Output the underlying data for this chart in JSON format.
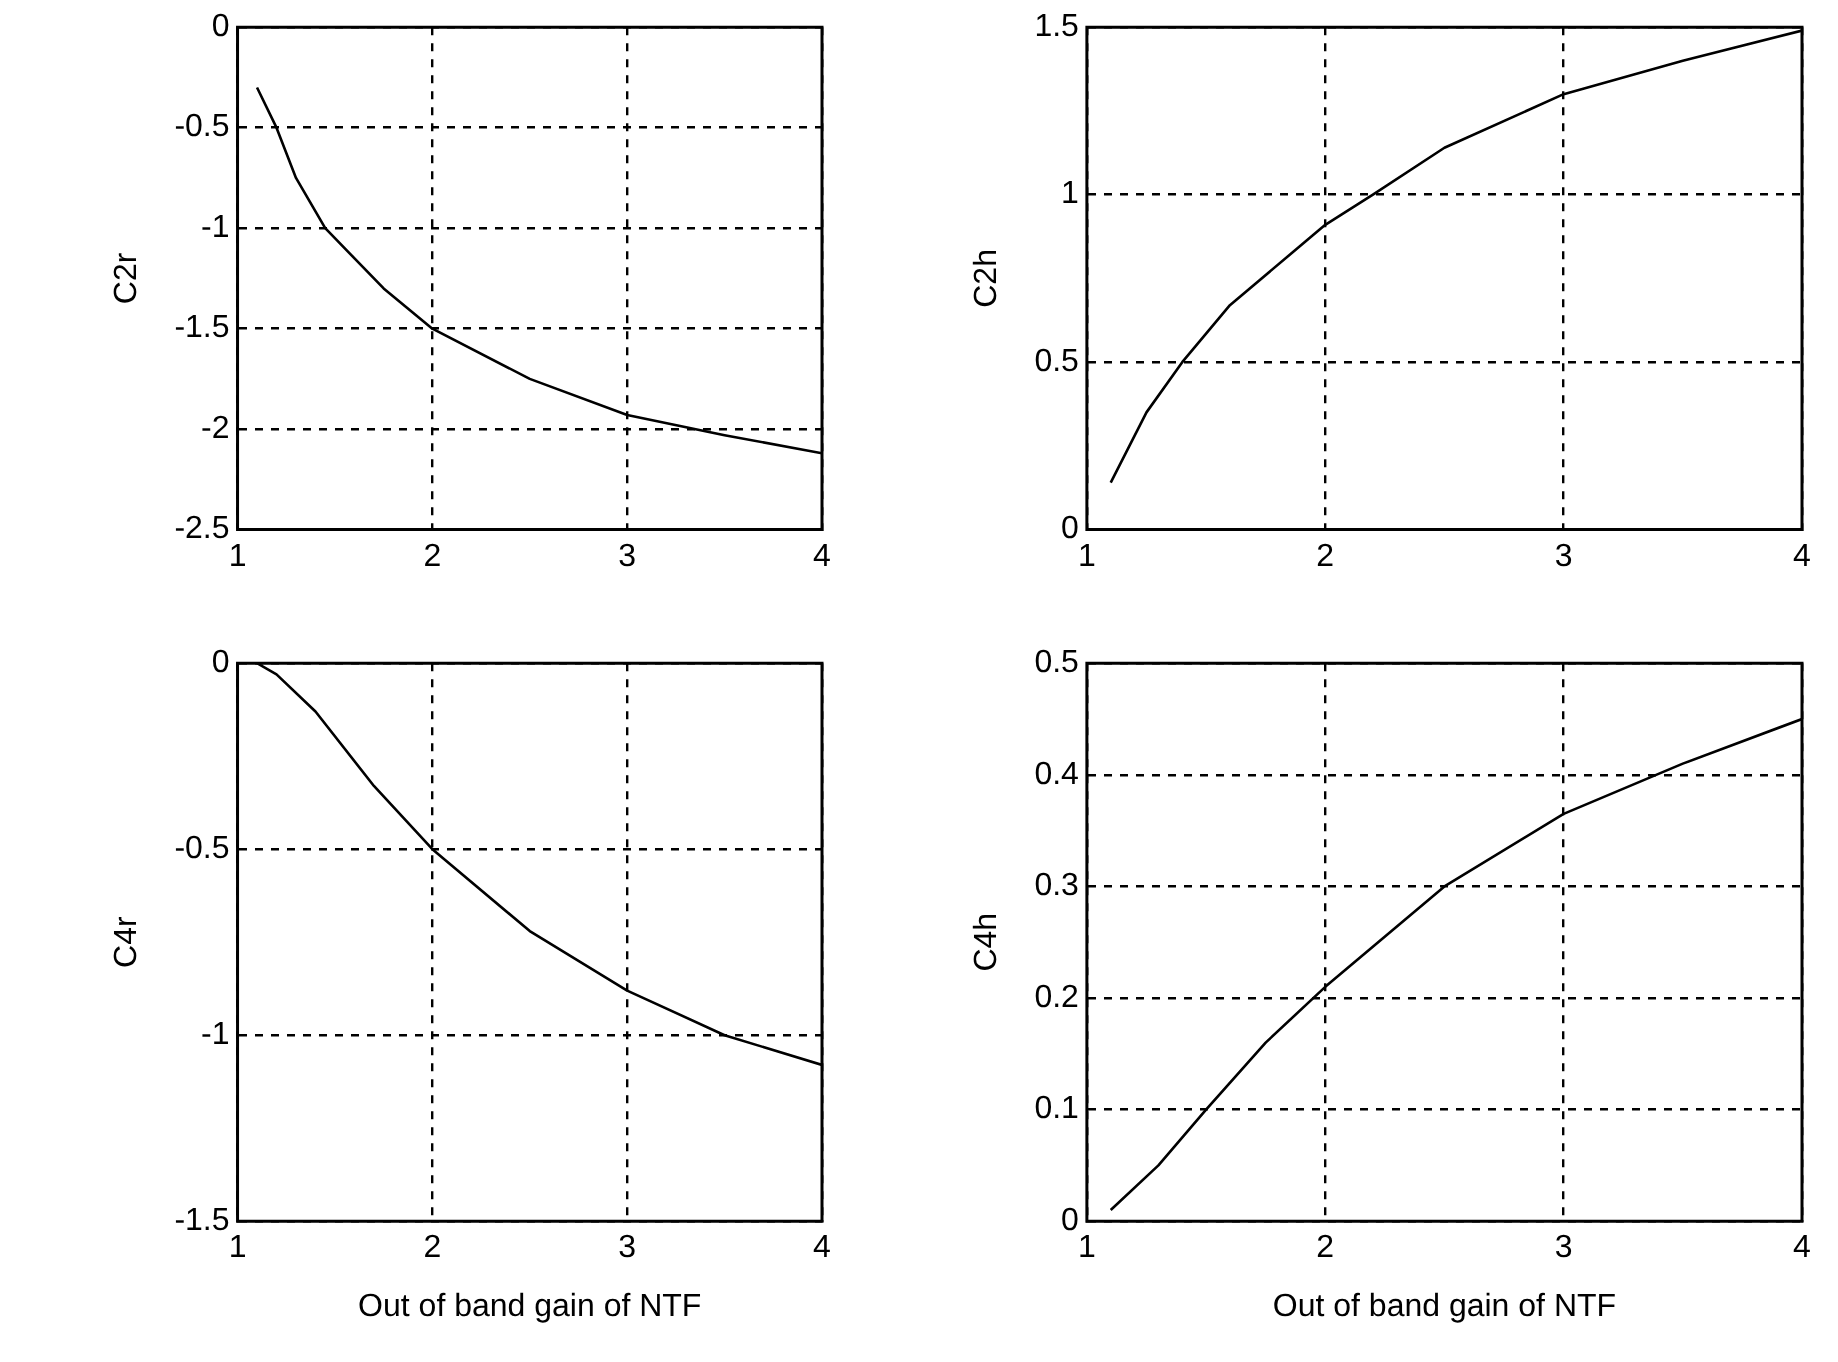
{
  "chart_data": [
    {
      "type": "line",
      "ylabel": "C2r",
      "xlim": [
        1,
        4
      ],
      "xticks": [
        1,
        2,
        3,
        4
      ],
      "ylim": [
        -2.5,
        0
      ],
      "yticks": [
        -2.5,
        -2,
        -1.5,
        -1,
        -0.5,
        0
      ],
      "grid": true,
      "series": [
        {
          "color": "#000000",
          "x": [
            1.1,
            1.2,
            1.3,
            1.45,
            1.75,
            2,
            2.5,
            3,
            3.5,
            4
          ],
          "values": [
            -0.3,
            -0.5,
            -0.75,
            -1,
            -1.3,
            -1.5,
            -1.75,
            -1.93,
            -2.03,
            -2.12
          ]
        }
      ]
    },
    {
      "type": "line",
      "ylabel": "C2h",
      "xlim": [
        1,
        4
      ],
      "xticks": [
        1,
        2,
        3,
        4
      ],
      "ylim": [
        0,
        1.5
      ],
      "yticks": [
        0,
        0.5,
        1,
        1.5
      ],
      "grid": true,
      "series": [
        {
          "color": "#000000",
          "x": [
            1.1,
            1.25,
            1.4,
            1.6,
            2,
            2.2,
            2.5,
            3,
            3.5,
            4
          ],
          "values": [
            0.14,
            0.35,
            0.5,
            0.67,
            0.91,
            1,
            1.14,
            1.3,
            1.4,
            1.49
          ]
        }
      ]
    },
    {
      "type": "line",
      "ylabel": "C4r",
      "xlabel": "Out of band gain of NTF",
      "xlim": [
        1,
        4
      ],
      "xticks": [
        1,
        2,
        3,
        4
      ],
      "ylim": [
        -1.5,
        0
      ],
      "yticks": [
        -1.5,
        -1,
        -0.5,
        0
      ],
      "grid": true,
      "series": [
        {
          "color": "#000000",
          "x": [
            1.1,
            1.2,
            1.4,
            1.7,
            2,
            2.5,
            3,
            3.5,
            4
          ],
          "values": [
            0,
            -0.03,
            -0.13,
            -0.33,
            -0.5,
            -0.72,
            -0.88,
            -1,
            -1.08
          ]
        }
      ]
    },
    {
      "type": "line",
      "ylabel": "C4h",
      "xlabel": "Out of band gain of NTF",
      "xlim": [
        1,
        4
      ],
      "xticks": [
        1,
        2,
        3,
        4
      ],
      "ylim": [
        0,
        0.5
      ],
      "yticks": [
        0,
        0.1,
        0.2,
        0.3,
        0.4,
        0.5
      ],
      "grid": true,
      "series": [
        {
          "color": "#000000",
          "x": [
            1.1,
            1.3,
            1.5,
            1.75,
            2,
            2.5,
            3,
            3.5,
            4
          ],
          "values": [
            0.01,
            0.05,
            0.1,
            0.16,
            0.21,
            0.3,
            0.365,
            0.41,
            0.45
          ]
        }
      ]
    }
  ]
}
